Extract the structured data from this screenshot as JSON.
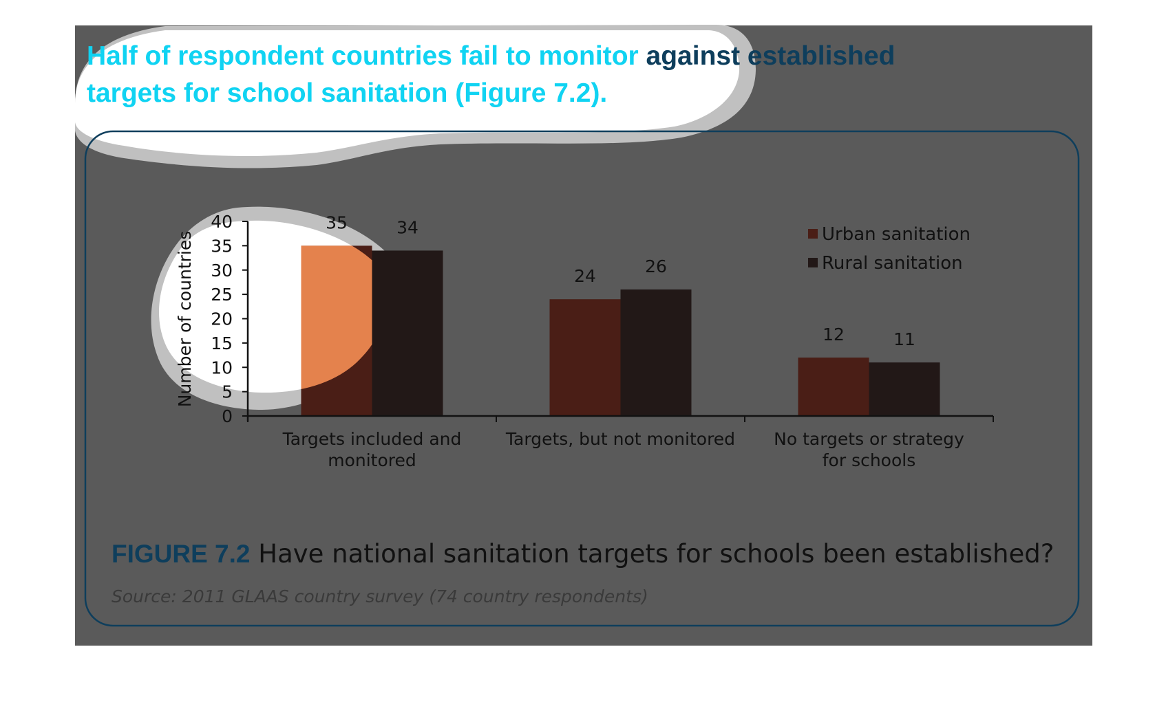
{
  "headline": {
    "line1_bright": "Half of respondent countries fail to monitor",
    "line1_dark": " against established",
    "line2": "targets for school sanitation (Figure 7.2).",
    "color_bright": "#10d3f2",
    "color_dark": "#0e3e5c"
  },
  "figure": {
    "label": "FIGURE 7.2",
    "caption": " Have national sanitation targets for schools been established?",
    "source": "Source: 2011 GLAAS country survey (74 country respondents)",
    "label_color": "#0e3e5c",
    "border_color": "#0e3e5c"
  },
  "chart_data": {
    "type": "bar",
    "categories": [
      "Targets included and monitored",
      "Targets, but not monitored",
      "No targets or strategy for schools"
    ],
    "category_lines": [
      [
        "Targets included and",
        "monitored"
      ],
      [
        "Targets, but not monitored"
      ],
      [
        "No targets or strategy",
        "for schools"
      ]
    ],
    "series": [
      {
        "name": "Urban sanitation",
        "values": [
          35,
          24,
          12
        ],
        "color": "#4a1e16"
      },
      {
        "name": "Rural sanitation",
        "values": [
          34,
          26,
          11
        ],
        "color": "#221817"
      }
    ],
    "highlight_color": "#ff9457",
    "ylabel": "Number of countries",
    "ylim": [
      0,
      40
    ],
    "yticks": [
      0,
      5,
      10,
      15,
      20,
      25,
      30,
      35,
      40
    ],
    "legend_position": "top-right",
    "grid": false
  },
  "colors": {
    "overlay": "#5a5a5a",
    "spotlight_halo": "#c0c0c0",
    "text": "#111111"
  }
}
